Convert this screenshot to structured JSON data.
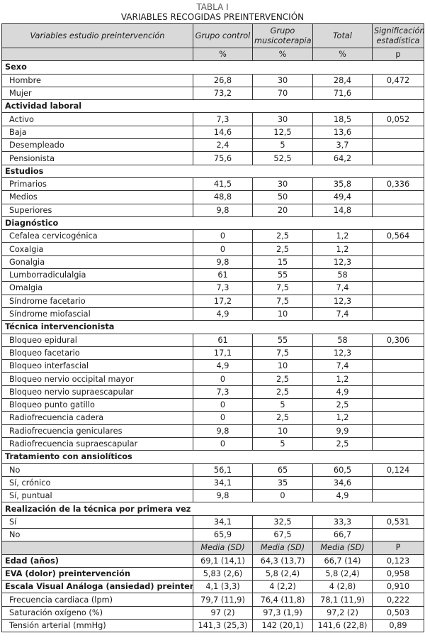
{
  "caption": {
    "table_no": "TABLA I",
    "title": "VARIABLES RECOGIDAS PREINTERVENCIÓN"
  },
  "header": [
    "Variables estudio preintervención",
    "Grupo control",
    "Grupo musicoterapia",
    "Total",
    "Significación estadística"
  ],
  "units_pct": [
    "",
    "%",
    "%",
    "%",
    "p"
  ],
  "units_mean": [
    "",
    "Media (SD)",
    "Media (SD)",
    "Media (SD)",
    "P"
  ],
  "sections": [
    {
      "title": "Sexo",
      "rows": [
        [
          "Hombre",
          "26,8",
          "30",
          "28,4",
          "0,472"
        ],
        [
          "Mujer",
          "73,2",
          "70",
          "71,6",
          ""
        ]
      ]
    },
    {
      "title": "Actividad laboral",
      "rows": [
        [
          "Activo",
          "7,3",
          "30",
          "18,5",
          "0,052"
        ],
        [
          "Baja",
          "14,6",
          "12,5",
          "13,6",
          ""
        ],
        [
          "Desempleado",
          "2,4",
          "5",
          "3,7",
          ""
        ],
        [
          "Pensionista",
          "75,6",
          "52,5",
          "64,2",
          ""
        ]
      ]
    },
    {
      "title": "Estudios",
      "rows": [
        [
          "Primarios",
          "41,5",
          "30",
          "35,8",
          "0,336"
        ],
        [
          "Medios",
          "48,8",
          "50",
          "49,4",
          ""
        ],
        [
          "Superiores",
          "9,8",
          "20",
          "14,8",
          ""
        ]
      ]
    },
    {
      "title": "Diagnóstico",
      "rows": [
        [
          "Cefalea cervicogénica",
          "0",
          "2,5",
          "1,2",
          "0,564"
        ],
        [
          "Coxalgia",
          "0",
          "2,5",
          "1,2",
          ""
        ],
        [
          "Gonalgia",
          "9,8",
          "15",
          "12,3",
          ""
        ],
        [
          "Lumborradiculalgia",
          "61",
          "55",
          "58",
          ""
        ],
        [
          "Omalgia",
          "7,3",
          "7,5",
          "7,4",
          ""
        ],
        [
          "Síndrome facetario",
          "17,2",
          "7,5",
          "12,3",
          ""
        ],
        [
          "Síndrome miofascial",
          "4,9",
          "10",
          "7,4",
          ""
        ]
      ]
    },
    {
      "title": "Técnica intervencionista",
      "rows": [
        [
          "Bloqueo epidural",
          "61",
          "55",
          "58",
          "0,306"
        ],
        [
          "Bloqueo facetario",
          "17,1",
          "7,5",
          "12,3",
          ""
        ],
        [
          "Bloqueo interfascial",
          "4,9",
          "10",
          "7,4",
          ""
        ],
        [
          "Bloqueo nervio occipital mayor",
          "0",
          "2,5",
          "1,2",
          ""
        ],
        [
          "Bloqueo nervio supraescapular",
          "7,3",
          "2,5",
          "4,9",
          ""
        ],
        [
          "Bloqueo punto gatillo",
          "0",
          "5",
          "2,5",
          ""
        ],
        [
          "Radiofrecuencia cadera",
          "0",
          "2,5",
          "1,2",
          ""
        ],
        [
          "Radiofrecuencia geniculares",
          "9,8",
          "10",
          "9,9",
          ""
        ],
        [
          "Radiofrecuencia supraescapular",
          "0",
          "5",
          "2,5",
          ""
        ]
      ]
    },
    {
      "title": "Tratamiento con ansiolíticos",
      "rows": [
        [
          "No",
          "56,1",
          "65",
          "60,5",
          "0,124"
        ],
        [
          "Sí, crónico",
          "34,1",
          "35",
          "34,6",
          ""
        ],
        [
          "Sí, puntual",
          "9,8",
          "0",
          "4,9",
          ""
        ]
      ]
    },
    {
      "title": "Realización de la técnica por primera vez",
      "rows": [
        [
          "Sí",
          "34,1",
          "32,5",
          "33,3",
          "0,531"
        ],
        [
          "No",
          "65,9",
          "67,5",
          "66,7",
          ""
        ]
      ]
    }
  ],
  "mean_rows": [
    {
      "bold": true,
      "cells": [
        "Edad (años)",
        "69,1 (14,1)",
        "64,3 (13,7)",
        "66,7 (14)",
        "0,123"
      ]
    },
    {
      "bold": true,
      "cells": [
        "EVA (dolor) preintervención",
        "5,83 (2,6)",
        "5,8 (2,4)",
        "5,8 (2,4)",
        "0,958"
      ]
    },
    {
      "bold": true,
      "cells": [
        "Escala Visual Análoga (ansiedad) preintervención",
        "4,1 (3,3)",
        "4 (2,2)",
        "4 (2,8)",
        "0,910"
      ]
    },
    {
      "bold": false,
      "cells": [
        "Frecuencia cardiaca (lpm)",
        "79,7 (11,9)",
        "76,4 (11,8)",
        "78,1 (11,9)",
        "0,222"
      ]
    },
    {
      "bold": false,
      "cells": [
        "Saturación oxígeno (%)",
        "97 (2)",
        "97,3 (1,9)",
        "97,2 (2)",
        "0,503"
      ]
    },
    {
      "bold": false,
      "cells": [
        "Tensión arterial (mmHg)",
        "141,3 (25,3)",
        "142 (20,1)",
        "141,6 (22,8)",
        "0,89"
      ]
    }
  ]
}
